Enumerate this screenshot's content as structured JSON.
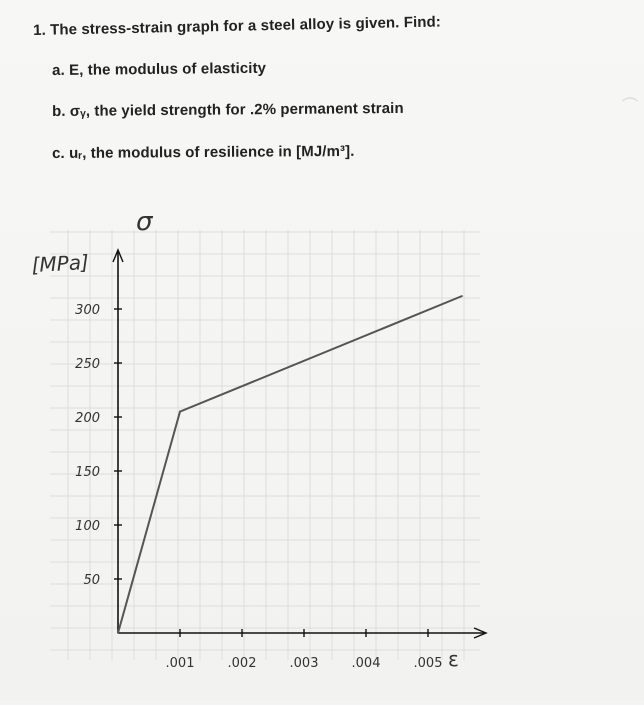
{
  "problem": {
    "heading": "1. The stress-strain graph for a steel alloy is given.  Find:",
    "parts": [
      "a. E, the modulus of elasticity",
      "b. σᵧ, the yield strength for .2% permanent strain",
      "c. uᵣ, the modulus of resilience in [MJ/m³]."
    ]
  },
  "chart_data": {
    "type": "line",
    "ylabel_symbol": "σ",
    "yunit": "[MPa]",
    "xlabel_symbol": "ε",
    "x_ticks": [
      ".001",
      ".002",
      ".003",
      ".004",
      ".005"
    ],
    "y_ticks": [
      "50",
      "100",
      "150",
      "200",
      "250",
      "300"
    ],
    "xlim": [
      0,
      0.006
    ],
    "ylim": [
      0,
      330
    ],
    "grid": true,
    "series": [
      {
        "points": [
          [
            0,
            0
          ],
          [
            0.001,
            205
          ],
          [
            0.00555,
            312
          ]
        ]
      }
    ],
    "colors": {
      "curve": "#555555",
      "axes": "#111111",
      "grid": "#dddddd"
    }
  }
}
